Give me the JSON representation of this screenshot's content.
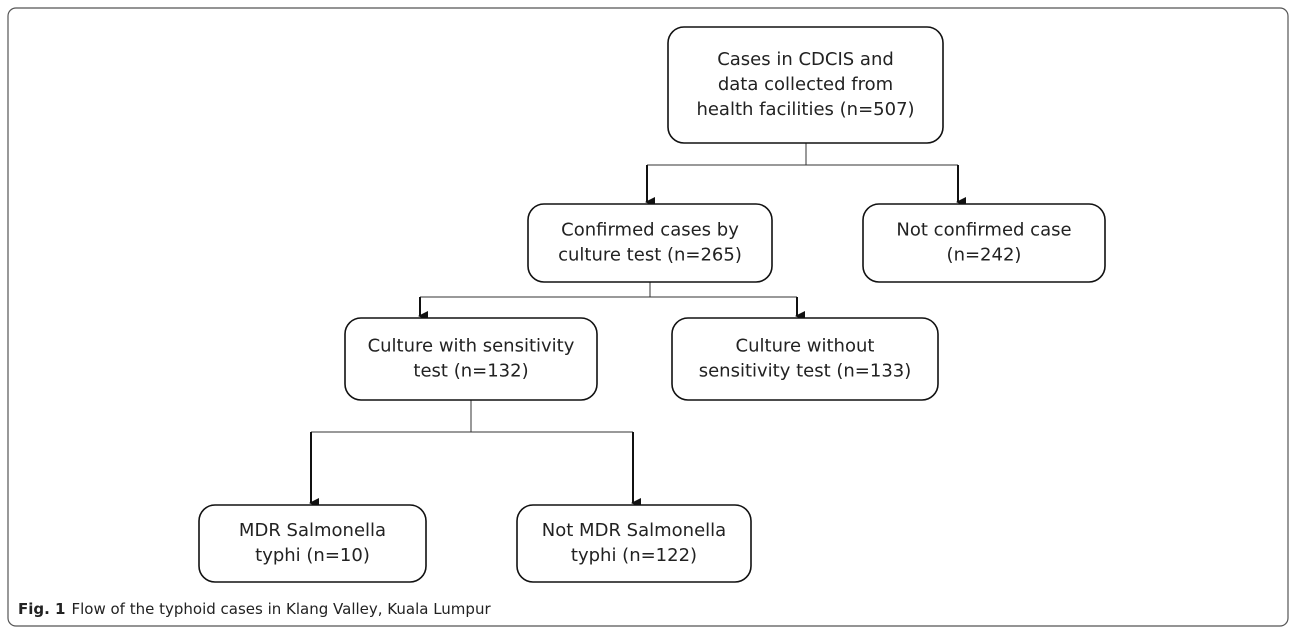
{
  "nodes": [
    {
      "lines": [
        "Cases in CDCIS and",
        "data collected from",
        "health facilities (n=507)"
      ]
    },
    {
      "lines": [
        "Confirmed cases by",
        "culture test (n=265)"
      ]
    },
    {
      "lines": [
        "Not confirmed case",
        "(n=242)"
      ]
    },
    {
      "lines": [
        "Culture with sensitivity",
        "test (n=132)"
      ]
    },
    {
      "lines": [
        "Culture without",
        "sensitivity test (n=133)"
      ]
    },
    {
      "lines": [
        "MDR Salmonella",
        "typhi (n=10)"
      ]
    },
    {
      "lines": [
        "Not MDR Salmonella",
        "typhi (n=122)"
      ]
    }
  ],
  "caption": {
    "label": "Fig. 1",
    "text": "Flow of the typhoid cases in Klang Valley, Kuala Lumpur"
  }
}
